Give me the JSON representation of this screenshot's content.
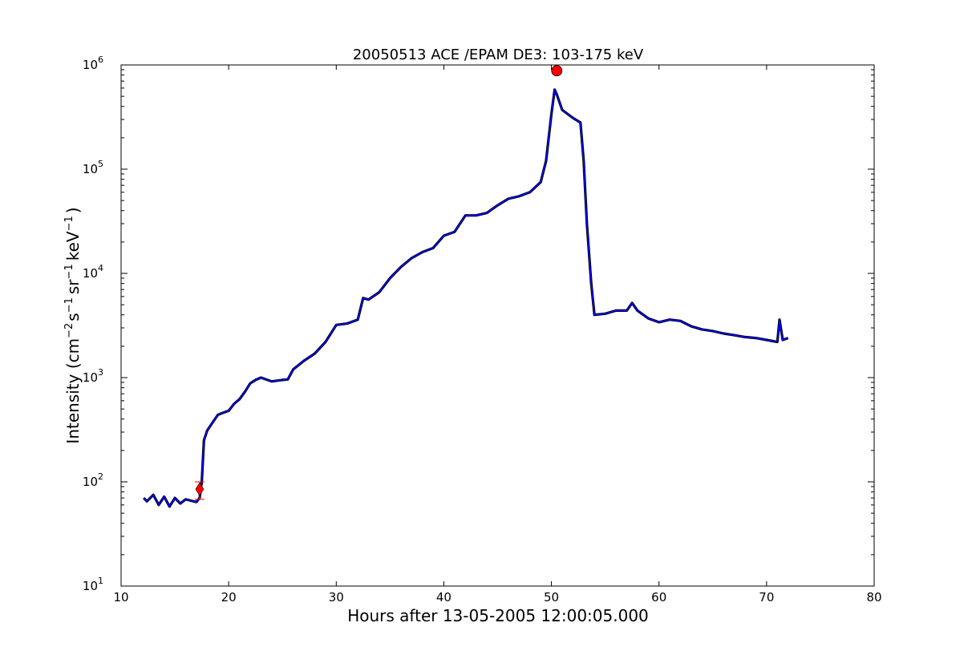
{
  "chart_data": {
    "type": "line",
    "title": "20050513 ACE /EPAM DE3: 103-175 keV",
    "xlabel": "Hours after 13-05-2005 12:00:05.000",
    "ylabel": {
      "prefix": "Intensity (cm",
      "e1": "−2",
      "p1": "s",
      "e2": "−1",
      "p2": "sr",
      "e3": "−1",
      "p3": "keV",
      "e4": "−1",
      "suffix": ")"
    },
    "xlim": [
      10,
      80
    ],
    "ylim": [
      10,
      1000000
    ],
    "yscale": "log",
    "grid": false,
    "x_ticks": [
      "10",
      "20",
      "30",
      "40",
      "50",
      "60",
      "70",
      "80"
    ],
    "y_ticks": [
      {
        "base": "10",
        "exp": "1"
      },
      {
        "base": "10",
        "exp": "2"
      },
      {
        "base": "10",
        "exp": "3"
      },
      {
        "base": "10",
        "exp": "4"
      },
      {
        "base": "10",
        "exp": "5"
      },
      {
        "base": "10",
        "exp": "6"
      }
    ],
    "colors": {
      "raw": "#000000",
      "smoothed": "#0000ff",
      "marker": "#ff0000"
    },
    "series": [
      {
        "style": "black",
        "points": [
          [
            12.1,
            70
          ],
          [
            12.4,
            65
          ],
          [
            13.0,
            75
          ],
          [
            13.5,
            60
          ],
          [
            14.0,
            72
          ],
          [
            14.5,
            58
          ],
          [
            15.0,
            70
          ],
          [
            15.5,
            62
          ],
          [
            16.0,
            68
          ],
          [
            16.5,
            66
          ],
          [
            17.0,
            64
          ],
          [
            17.3,
            70
          ],
          [
            17.5,
            100
          ],
          [
            17.7,
            250
          ],
          [
            18.0,
            310
          ],
          [
            18.5,
            370
          ],
          [
            19.0,
            440
          ],
          [
            19.5,
            460
          ],
          [
            20.0,
            480
          ],
          [
            20.5,
            560
          ],
          [
            21.0,
            620
          ],
          [
            21.5,
            730
          ],
          [
            22.0,
            880
          ],
          [
            22.5,
            950
          ],
          [
            23.0,
            1000
          ],
          [
            24.0,
            920
          ],
          [
            25.0,
            950
          ],
          [
            25.5,
            960
          ],
          [
            26.0,
            1200
          ],
          [
            27.0,
            1450
          ],
          [
            28.0,
            1700
          ],
          [
            29.0,
            2200
          ],
          [
            30.0,
            3200
          ],
          [
            31.0,
            3300
          ],
          [
            32.0,
            3600
          ],
          [
            32.5,
            5800
          ],
          [
            33.0,
            5600
          ],
          [
            34.0,
            6600
          ],
          [
            35.0,
            9000
          ],
          [
            36.0,
            11500
          ],
          [
            37.0,
            14000
          ],
          [
            38.0,
            16000
          ],
          [
            39.0,
            17500
          ],
          [
            40.0,
            23000
          ],
          [
            41.0,
            25000
          ],
          [
            42.0,
            36000
          ],
          [
            43.0,
            36000
          ],
          [
            44.0,
            38000
          ],
          [
            45.0,
            45000
          ],
          [
            46.0,
            52000
          ],
          [
            47.0,
            55000
          ],
          [
            48.0,
            60000
          ],
          [
            49.0,
            75000
          ],
          [
            49.5,
            120000
          ],
          [
            50.0,
            340000
          ],
          [
            50.3,
            580000
          ],
          [
            50.5,
            520000
          ],
          [
            51.0,
            370000
          ],
          [
            52.0,
            310000
          ],
          [
            52.7,
            280000
          ],
          [
            53.0,
            120000
          ],
          [
            53.3,
            30000
          ],
          [
            53.7,
            8000
          ],
          [
            54.0,
            4000
          ],
          [
            55.0,
            4100
          ],
          [
            56.0,
            4400
          ],
          [
            57.0,
            4400
          ],
          [
            57.5,
            5200
          ],
          [
            58.0,
            4400
          ],
          [
            59.0,
            3700
          ],
          [
            60.0,
            3400
          ],
          [
            61.0,
            3600
          ],
          [
            62.0,
            3500
          ],
          [
            63.0,
            3100
          ],
          [
            64.0,
            2900
          ],
          [
            65.0,
            2800
          ],
          [
            66.0,
            2650
          ],
          [
            67.0,
            2550
          ],
          [
            68.0,
            2450
          ],
          [
            69.0,
            2400
          ],
          [
            70.0,
            2300
          ],
          [
            71.0,
            2200
          ],
          [
            71.2,
            3600
          ],
          [
            71.5,
            2300
          ],
          [
            72.0,
            2400
          ]
        ]
      },
      {
        "style": "blue",
        "points": [
          [
            12.1,
            70
          ],
          [
            12.4,
            65
          ],
          [
            13.0,
            75
          ],
          [
            13.5,
            60
          ],
          [
            14.0,
            72
          ],
          [
            14.5,
            58
          ],
          [
            15.0,
            70
          ],
          [
            15.5,
            62
          ],
          [
            16.0,
            68
          ],
          [
            16.5,
            66
          ],
          [
            17.0,
            64
          ],
          [
            17.3,
            70
          ],
          [
            17.5,
            100
          ],
          [
            17.7,
            250
          ],
          [
            18.0,
            310
          ],
          [
            18.5,
            370
          ],
          [
            19.0,
            440
          ],
          [
            19.5,
            460
          ],
          [
            20.0,
            480
          ],
          [
            20.5,
            560
          ],
          [
            21.0,
            620
          ],
          [
            21.5,
            730
          ],
          [
            22.0,
            880
          ],
          [
            22.5,
            950
          ],
          [
            23.0,
            1000
          ],
          [
            24.0,
            920
          ],
          [
            25.0,
            950
          ],
          [
            25.5,
            960
          ],
          [
            26.0,
            1200
          ],
          [
            27.0,
            1450
          ],
          [
            28.0,
            1700
          ],
          [
            29.0,
            2200
          ],
          [
            30.0,
            3200
          ],
          [
            31.0,
            3300
          ],
          [
            32.0,
            3600
          ],
          [
            32.5,
            5800
          ],
          [
            33.0,
            5600
          ],
          [
            34.0,
            6600
          ],
          [
            35.0,
            9000
          ],
          [
            36.0,
            11500
          ],
          [
            37.0,
            14000
          ],
          [
            38.0,
            16000
          ],
          [
            39.0,
            17500
          ],
          [
            40.0,
            23000
          ],
          [
            41.0,
            25000
          ],
          [
            42.0,
            36000
          ],
          [
            43.0,
            36000
          ],
          [
            44.0,
            38000
          ],
          [
            45.0,
            45000
          ],
          [
            46.0,
            52000
          ],
          [
            47.0,
            55000
          ],
          [
            48.0,
            60000
          ],
          [
            49.0,
            75000
          ],
          [
            49.5,
            120000
          ],
          [
            50.0,
            340000
          ],
          [
            50.3,
            580000
          ],
          [
            50.5,
            520000
          ],
          [
            51.0,
            370000
          ],
          [
            52.0,
            310000
          ],
          [
            52.7,
            280000
          ],
          [
            53.0,
            120000
          ],
          [
            53.3,
            30000
          ],
          [
            53.7,
            8000
          ],
          [
            54.0,
            4000
          ],
          [
            55.0,
            4100
          ],
          [
            56.0,
            4400
          ],
          [
            57.0,
            4400
          ],
          [
            57.5,
            5200
          ],
          [
            58.0,
            4400
          ],
          [
            59.0,
            3700
          ],
          [
            60.0,
            3400
          ],
          [
            61.0,
            3600
          ],
          [
            62.0,
            3500
          ],
          [
            63.0,
            3100
          ],
          [
            64.0,
            2900
          ],
          [
            65.0,
            2800
          ],
          [
            66.0,
            2650
          ],
          [
            67.0,
            2550
          ],
          [
            68.0,
            2450
          ],
          [
            69.0,
            2400
          ],
          [
            70.0,
            2300
          ],
          [
            71.0,
            2200
          ],
          [
            71.2,
            3600
          ],
          [
            71.5,
            2300
          ],
          [
            72.0,
            2400
          ]
        ]
      }
    ],
    "markers": [
      {
        "shape": "diamond",
        "x": 17.3,
        "y": 85,
        "err_low": 68,
        "err_high": 100
      },
      {
        "shape": "circle",
        "x": 50.5,
        "y": 880000
      }
    ]
  }
}
